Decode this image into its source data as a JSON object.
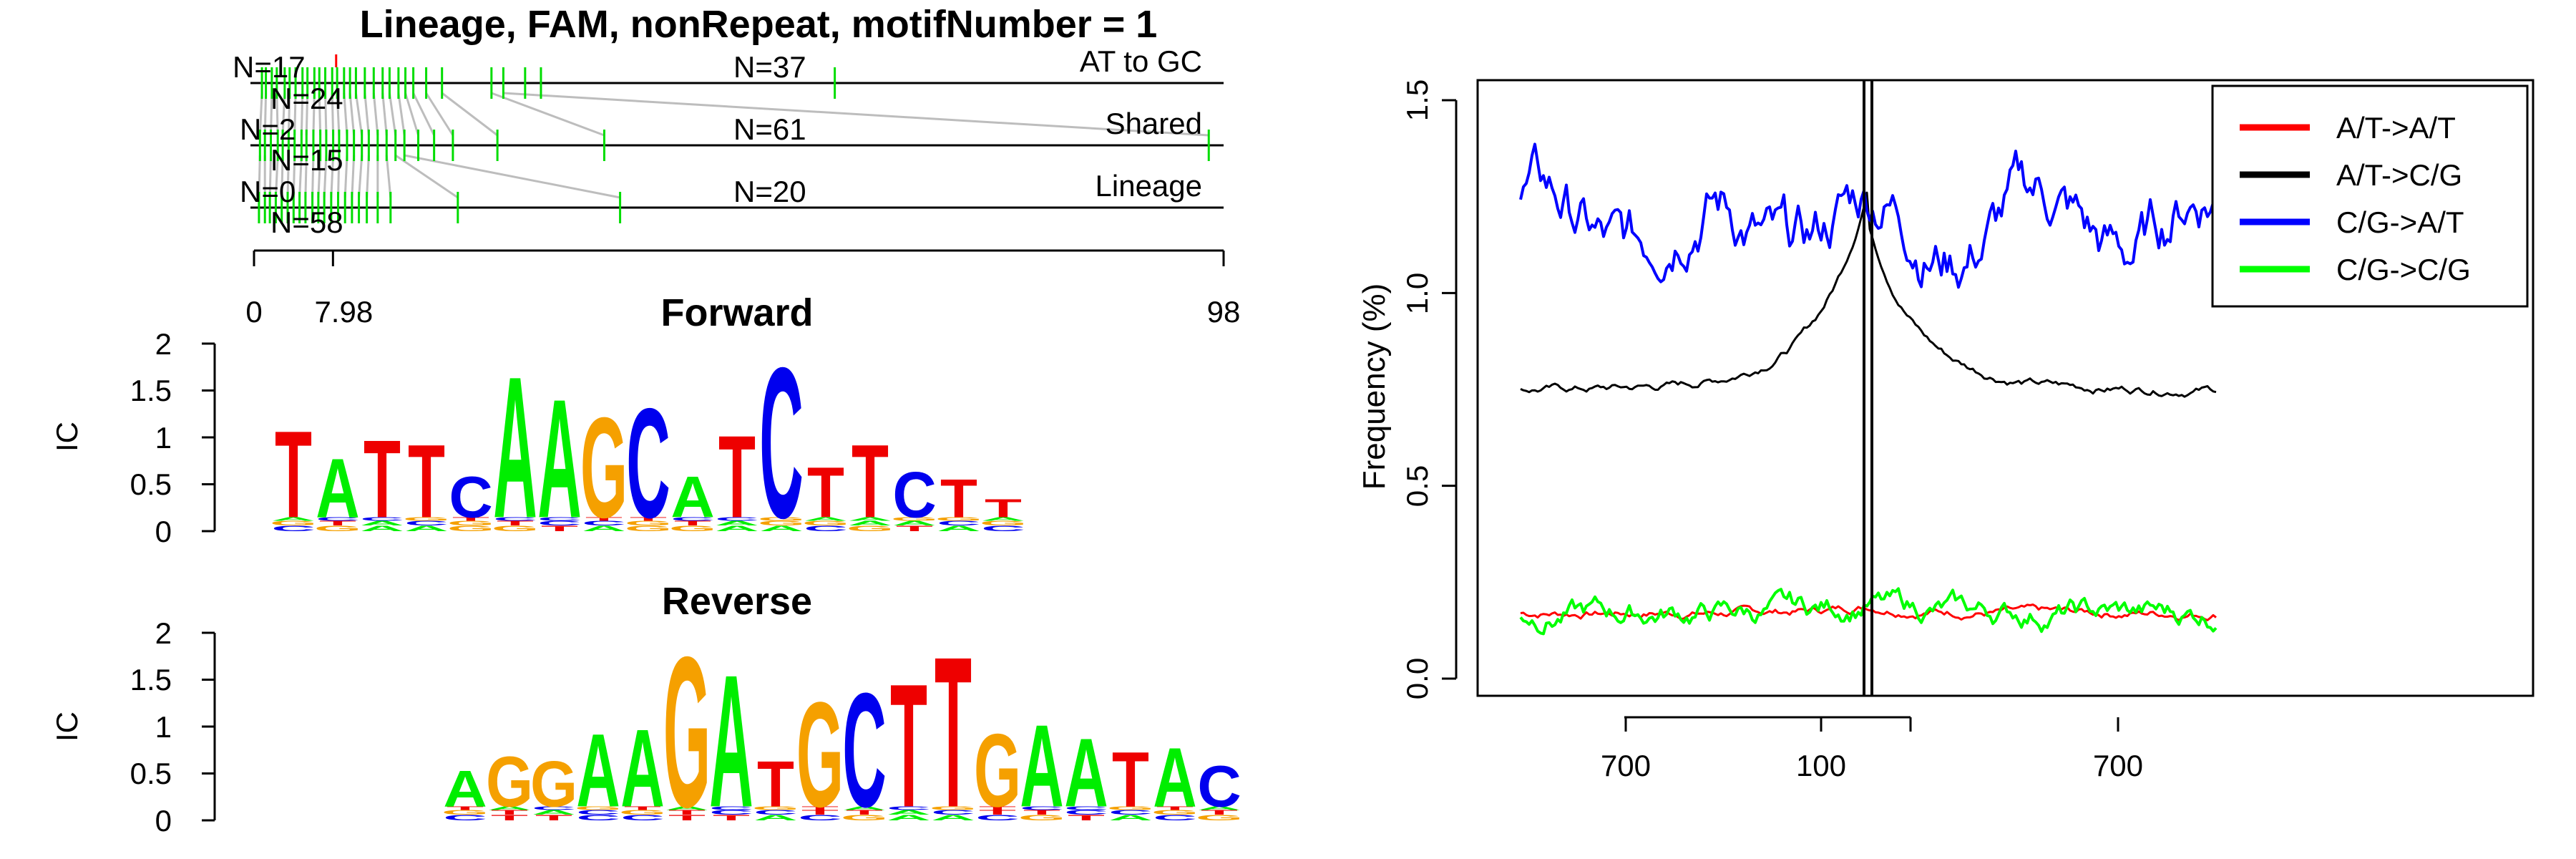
{
  "title": "Lineage, FAM, nonRepeat, motifNumber = 1",
  "position_plot": {
    "rows": [
      {
        "label": "AT to GC",
        "left_n": "N=17",
        "mid_n": "N=37"
      },
      {
        "label": "Shared",
        "left_n": "N=2",
        "mid_n": "N=61"
      },
      {
        "label": "Lineage",
        "left_n": "N=0",
        "mid_n": "N=20"
      }
    ],
    "between_n": [
      "N=24",
      "N=15",
      "N=58"
    ],
    "axis_ticks": [
      "0",
      "7.98",
      "98"
    ],
    "axis_values": [
      0,
      7.98,
      98
    ],
    "ticks_row1": [
      0.8,
      1.2,
      1.8,
      2.3,
      3.1,
      3.6,
      4.2,
      4.9,
      5.4,
      6.1,
      6.6,
      7.2,
      7.9,
      8.4,
      9.1,
      9.7,
      10.3,
      11.2,
      12.1,
      13.0,
      13.7,
      14.6,
      15.3,
      16.1,
      17.4,
      19.0,
      24.0,
      25.2,
      27.4,
      29.0,
      58.7
    ],
    "ticks_row2": [
      0.6,
      1.1,
      1.7,
      2.4,
      2.9,
      3.5,
      4.1,
      4.8,
      5.3,
      6.0,
      6.7,
      7.3,
      8.0,
      8.6,
      9.4,
      10.1,
      10.9,
      11.6,
      12.5,
      13.4,
      14.3,
      15.2,
      16.6,
      18.2,
      20.1,
      24.6,
      35.4,
      96.5
    ],
    "ticks_row3": [
      0.5,
      1.1,
      1.6,
      2.2,
      2.8,
      3.4,
      4.0,
      4.6,
      5.2,
      5.9,
      6.5,
      7.1,
      7.8,
      8.5,
      9.2,
      9.9,
      10.6,
      11.4,
      12.5,
      13.8,
      20.6,
      37.0
    ],
    "ticks_red": [
      8.3
    ]
  },
  "logos": [
    {
      "title": "Forward",
      "ylabel": "IC",
      "yticks": [
        "2",
        "1.5",
        "1",
        "0.5",
        "0"
      ],
      "letters": [
        {
          "ch": "T",
          "ic": 0.95
        },
        {
          "ch": "A",
          "ic": 0.65
        },
        {
          "ch": "T",
          "ic": 0.85
        },
        {
          "ch": "T",
          "ic": 0.8
        },
        {
          "ch": "C",
          "ic": 0.45
        },
        {
          "ch": "A",
          "ic": 1.55
        },
        {
          "ch": "A",
          "ic": 1.3
        },
        {
          "ch": "G",
          "ic": 1.1
        },
        {
          "ch": "C",
          "ic": 1.2
        },
        {
          "ch": "A",
          "ic": 0.45
        },
        {
          "ch": "T",
          "ic": 0.9
        },
        {
          "ch": "C",
          "ic": 1.65
        },
        {
          "ch": "T",
          "ic": 0.55
        },
        {
          "ch": "T",
          "ic": 0.8
        },
        {
          "ch": "C",
          "ic": 0.5
        },
        {
          "ch": "T",
          "ic": 0.42
        },
        {
          "ch": "T",
          "ic": 0.2
        }
      ]
    },
    {
      "title": "Reverse",
      "ylabel": "IC",
      "yticks": [
        "2",
        "1.5",
        "1",
        "0.5",
        "0"
      ],
      "letters": [
        {
          "ch": "A",
          "ic": 0.4
        },
        {
          "ch": "G",
          "ic": 0.55
        },
        {
          "ch": "G",
          "ic": 0.5
        },
        {
          "ch": "A",
          "ic": 0.8
        },
        {
          "ch": "A",
          "ic": 0.85
        },
        {
          "ch": "G",
          "ic": 1.65
        },
        {
          "ch": "A",
          "ic": 1.45
        },
        {
          "ch": "T",
          "ic": 0.5
        },
        {
          "ch": "G",
          "ic": 1.15
        },
        {
          "ch": "C",
          "ic": 1.25
        },
        {
          "ch": "T",
          "ic": 1.35
        },
        {
          "ch": "T",
          "ic": 1.65
        },
        {
          "ch": "G",
          "ic": 0.8
        },
        {
          "ch": "A",
          "ic": 0.9
        },
        {
          "ch": "A",
          "ic": 0.75
        },
        {
          "ch": "T",
          "ic": 0.6
        },
        {
          "ch": "A",
          "ic": 0.65
        },
        {
          "ch": "C",
          "ic": 0.45
        }
      ]
    }
  ],
  "base_colors": {
    "A": "#00ee00",
    "C": "#0000ee",
    "G": "#f5a000",
    "T": "#ee0000"
  },
  "chart_data": {
    "type": "line",
    "ylabel": "Frequency (%)",
    "ylim": [
      0,
      1.5
    ],
    "yticks": [
      "0.0",
      "0.5",
      "1.0",
      "1.5"
    ],
    "xtick_labels": [
      "700",
      "100",
      "700"
    ],
    "legend_position": "top-right",
    "vertical_lines": [
      "centre",
      "centre"
    ],
    "series": [
      {
        "name": "A/T->A/T",
        "color": "#ff0000",
        "level": 0.17,
        "noise": 0.012,
        "peak": 0.02,
        "width": 3
      },
      {
        "name": "A/T->C/G",
        "color": "#000000",
        "level": 0.75,
        "noise": 0.012,
        "peak": 0.52,
        "width": 3
      },
      {
        "name": "C/G->A/T",
        "color": "#0000ff",
        "level": 1.18,
        "noise": 0.09,
        "peak": 0.0,
        "width": 4
      },
      {
        "name": "C/G->C/G",
        "color": "#00ff00",
        "level": 0.17,
        "noise": 0.035,
        "peak": 0.03,
        "width": 4
      }
    ]
  }
}
